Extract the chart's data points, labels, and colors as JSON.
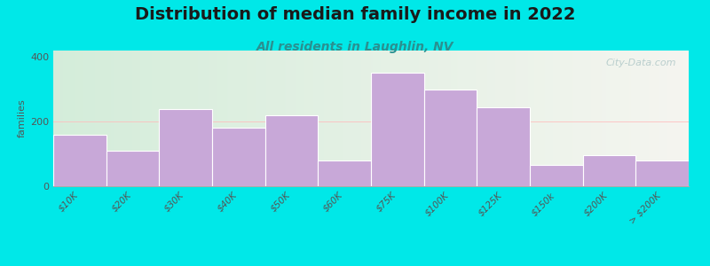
{
  "title": "Distribution of median family income in 2022",
  "subtitle": "All residents in Laughlin, NV",
  "ylabel": "families",
  "categories": [
    "$10K",
    "$20K",
    "$30K",
    "$40K",
    "$50K",
    "$60K",
    "$75K",
    "$100K",
    "$125K",
    "$150k",
    "$200K",
    "> $200K"
  ],
  "values": [
    160,
    110,
    240,
    180,
    220,
    80,
    350,
    300,
    245,
    65,
    95,
    80
  ],
  "bin_widths": [
    1,
    1,
    1,
    1,
    1,
    1,
    1,
    1,
    1,
    1,
    1,
    1
  ],
  "bar_color": "#c8a8d8",
  "background_outer": "#00e8e8",
  "background_inner_left": "#d4edda",
  "background_inner_right": "#f5f5f0",
  "ylim": [
    0,
    420
  ],
  "yticks": [
    0,
    200,
    400
  ],
  "title_fontsize": 14,
  "subtitle_fontsize": 10,
  "subtitle_color": "#2a9090",
  "ylabel_fontsize": 8,
  "watermark": "City-Data.com"
}
